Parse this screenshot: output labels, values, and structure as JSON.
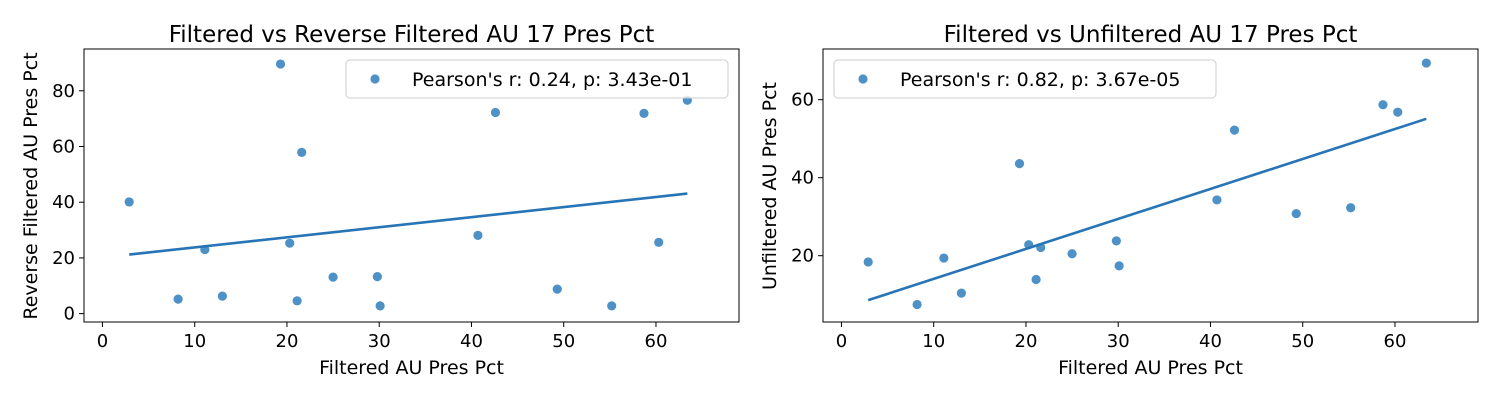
{
  "figure": {
    "background": "#ffffff"
  },
  "chart_data": [
    {
      "type": "scatter",
      "title": "Filtered vs Reverse Filtered AU 17 Pres Pct",
      "xlabel": "Filtered AU Pres Pct",
      "ylabel": "Reverse Filtered AU Pres Pct",
      "xlim": [
        -2,
        69
      ],
      "ylim": [
        -3,
        95
      ],
      "xticks": [
        0,
        10,
        20,
        30,
        40,
        50,
        60
      ],
      "yticks": [
        0,
        20,
        40,
        60,
        80
      ],
      "grid": false,
      "legend": {
        "location": "top-right",
        "label": "Pearson's r: 0.24, p: 3.43e-01"
      },
      "point_color": "#3a85c0",
      "line_color": "#2775b6",
      "points": {
        "x": [
          2.9,
          8.2,
          11.1,
          13.0,
          19.3,
          20.3,
          21.1,
          21.6,
          25.0,
          29.8,
          30.1,
          40.7,
          42.6,
          49.3,
          55.2,
          58.7,
          60.3,
          63.4
        ],
        "y": [
          40.1,
          5.2,
          23.0,
          6.3,
          89.6,
          25.3,
          4.6,
          57.9,
          13.1,
          13.3,
          2.8,
          28.1,
          72.2,
          8.8,
          2.8,
          71.9,
          25.6,
          76.6
        ]
      },
      "fit_line": {
        "x": [
          2.9,
          63.4
        ],
        "y": [
          21.2,
          43.1
        ]
      }
    },
    {
      "type": "scatter",
      "title": "Filtered vs Unfiltered AU 17 Pres Pct",
      "xlabel": "Filtered AU Pres Pct",
      "ylabel": "Unfiltered AU Pres Pct",
      "xlim": [
        -2,
        69
      ],
      "ylim": [
        3,
        73
      ],
      "xticks": [
        0,
        10,
        20,
        30,
        40,
        50,
        60
      ],
      "yticks": [
        20,
        40,
        60
      ],
      "grid": false,
      "legend": {
        "location": "top-left",
        "label": "Pearson's r: 0.82, p: 3.67e-05"
      },
      "point_color": "#3a85c0",
      "line_color": "#2775b6",
      "points": {
        "x": [
          2.9,
          8.2,
          11.1,
          13.0,
          19.3,
          20.3,
          21.1,
          21.6,
          25.0,
          29.8,
          30.1,
          40.7,
          42.6,
          49.3,
          55.2,
          58.7,
          60.3,
          63.4
        ],
        "y": [
          18.4,
          7.5,
          19.4,
          10.4,
          43.6,
          22.8,
          13.9,
          22.1,
          20.5,
          23.8,
          17.4,
          34.3,
          52.2,
          30.8,
          32.3,
          58.7,
          56.8,
          69.4
        ]
      },
      "fit_line": {
        "x": [
          2.9,
          63.4
        ],
        "y": [
          8.6,
          55.1
        ]
      }
    }
  ]
}
